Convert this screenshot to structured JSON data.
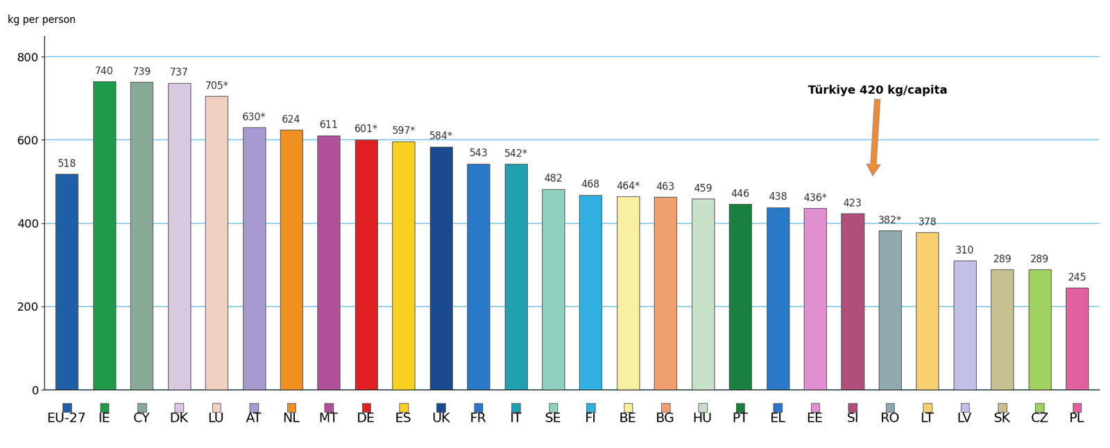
{
  "chart_data": {
    "type": "bar",
    "y_label": "kg per person",
    "categories": [
      "EU-27",
      "IE",
      "CY",
      "DK",
      "LU",
      "AT",
      "NL",
      "MT",
      "DE",
      "ES",
      "UK",
      "FR",
      "IT",
      "SE",
      "FI",
      "BE",
      "BG",
      "HU",
      "PT",
      "EL",
      "EE",
      "SI",
      "RO",
      "LT",
      "LV",
      "SK",
      "CZ",
      "PL"
    ],
    "values": [
      518,
      740,
      739,
      737,
      705,
      630,
      624,
      611,
      601,
      597,
      584,
      543,
      542,
      482,
      468,
      464,
      463,
      459,
      446,
      438,
      436,
      423,
      382,
      378,
      310,
      289,
      289,
      245
    ],
    "value_labels": [
      "518",
      "740",
      "739",
      "737",
      "705*",
      "630*",
      "624",
      "611",
      "601*",
      "597*",
      "584*",
      "543",
      "542*",
      "482",
      "468",
      "464*",
      "463",
      "459",
      "446",
      "438",
      "436*",
      "423",
      "382*",
      "378",
      "310",
      "289",
      "289",
      "245"
    ],
    "colors": [
      "#1f5fa8",
      "#1e9a4a",
      "#8aaa98",
      "#d8c8e0",
      "#f0d0c0",
      "#a89ad0",
      "#f09020",
      "#b0509a",
      "#e02020",
      "#f8d020",
      "#1a4a90",
      "#2a78c8",
      "#20a0b0",
      "#90d0c0",
      "#30b0e0",
      "#f8f0a0",
      "#f0a070",
      "#c8e0c8",
      "#1a8040",
      "#2a78c8",
      "#e090d0",
      "#b0507a",
      "#90a8b0",
      "#f8d070",
      "#c0c0e8",
      "#c8c090",
      "#a0d060",
      "#e060a0"
    ],
    "ylim": [
      0,
      850
    ],
    "yticks": [
      0,
      200,
      400,
      600,
      800
    ],
    "grid": true,
    "data_labels": true,
    "annotation": "Türkiye 420 kg/capita"
  }
}
